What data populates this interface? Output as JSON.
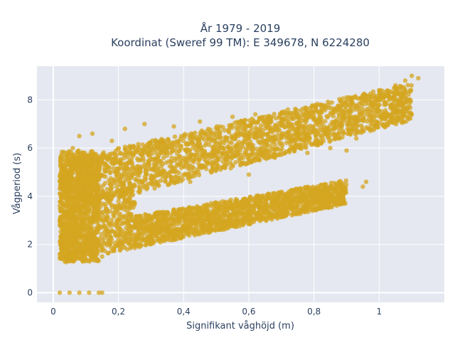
{
  "chart_data": {
    "type": "scatter",
    "title_line1": "År 1979 - 2019",
    "title_line2": "Koordinat (Sweref 99 TM): E 349678, N 6224280",
    "xlabel": "Signifikant våghöjd (m)",
    "ylabel": "Vågperiod (s)",
    "xlim": [
      -0.05,
      1.2
    ],
    "ylim": [
      -0.4,
      9.4
    ],
    "x_ticks": [
      {
        "value": 0,
        "label": "0"
      },
      {
        "value": 0.2,
        "label": "0,2"
      },
      {
        "value": 0.4,
        "label": "0,4"
      },
      {
        "value": 0.6,
        "label": "0,6"
      },
      {
        "value": 0.8,
        "label": "0,8"
      },
      {
        "value": 1.0,
        "label": "1"
      }
    ],
    "y_ticks": [
      {
        "value": 0,
        "label": "0"
      },
      {
        "value": 2,
        "label": "2"
      },
      {
        "value": 4,
        "label": "4"
      },
      {
        "value": 6,
        "label": "6"
      },
      {
        "value": 8,
        "label": "8"
      }
    ],
    "grid": true,
    "legend": "none",
    "marker_color": "#D4A520",
    "background_color": "#E5E8F0",
    "series": [
      {
        "points": [
          [
            0.02,
            1.6
          ],
          [
            0.03,
            2.2
          ],
          [
            0.02,
            3.0
          ],
          [
            0.03,
            4.3
          ],
          [
            0.02,
            3.6
          ],
          [
            0.03,
            5.0
          ],
          [
            0.05,
            5.5
          ],
          [
            0.04,
            2.8
          ],
          [
            0.05,
            1.7
          ],
          [
            0.06,
            6.0
          ],
          [
            0.04,
            4.0
          ],
          [
            0.07,
            3.2
          ],
          [
            0.08,
            6.5
          ],
          [
            0.09,
            1.3
          ],
          [
            0.1,
            4.8
          ],
          [
            0.12,
            6.6
          ],
          [
            0.12,
            2.0
          ],
          [
            0.14,
            5.2
          ],
          [
            0.15,
            1.5
          ],
          [
            0.16,
            3.6
          ],
          [
            0.18,
            6.3
          ],
          [
            0.2,
            2.2
          ],
          [
            0.22,
            6.8
          ],
          [
            0.24,
            4.4
          ],
          [
            0.25,
            2.4
          ],
          [
            0.28,
            7.0
          ],
          [
            0.3,
            2.6
          ],
          [
            0.32,
            5.6
          ],
          [
            0.35,
            2.8
          ],
          [
            0.37,
            6.9
          ],
          [
            0.4,
            3.0
          ],
          [
            0.42,
            4.6
          ],
          [
            0.45,
            7.1
          ],
          [
            0.48,
            3.1
          ],
          [
            0.5,
            5.4
          ],
          [
            0.52,
            3.3
          ],
          [
            0.55,
            7.3
          ],
          [
            0.57,
            3.4
          ],
          [
            0.6,
            4.9
          ],
          [
            0.62,
            7.4
          ],
          [
            0.65,
            3.6
          ],
          [
            0.68,
            5.6
          ],
          [
            0.7,
            3.7
          ],
          [
            0.72,
            7.6
          ],
          [
            0.75,
            3.8
          ],
          [
            0.78,
            5.8
          ],
          [
            0.8,
            3.9
          ],
          [
            0.82,
            7.8
          ],
          [
            0.85,
            6.0
          ],
          [
            0.88,
            3.8
          ],
          [
            0.9,
            8.1
          ],
          [
            0.93,
            6.4
          ],
          [
            0.95,
            8.2
          ],
          [
            0.97,
            6.8
          ],
          [
            1.0,
            8.4
          ],
          [
            1.02,
            7.2
          ],
          [
            1.05,
            8.6
          ],
          [
            1.08,
            8.8
          ],
          [
            1.1,
            9.0
          ],
          [
            1.12,
            8.9
          ],
          [
            0.02,
            0.0
          ],
          [
            0.05,
            0.0
          ],
          [
            0.08,
            0.0
          ],
          [
            0.11,
            0.0
          ],
          [
            0.14,
            0.0
          ],
          [
            0.15,
            0.0
          ],
          [
            0.96,
            4.6
          ],
          [
            0.95,
            4.4
          ],
          [
            0.9,
            5.9
          ],
          [
            0.88,
            7.0
          ]
        ]
      }
    ]
  }
}
